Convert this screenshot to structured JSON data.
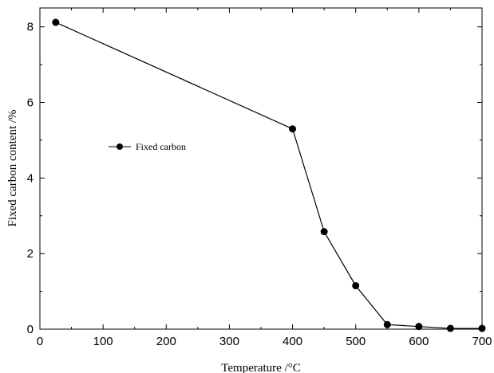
{
  "chart_data": {
    "type": "line",
    "xlabel": "Temperature /°C",
    "ylabel": "Fixed carbon content /%",
    "xlim": [
      0,
      700
    ],
    "ylim": [
      0,
      8.5
    ],
    "xticks": [
      0,
      100,
      200,
      300,
      400,
      500,
      600,
      700
    ],
    "yticks": [
      0,
      2,
      4,
      6,
      8
    ],
    "grid": false,
    "legend_placement": "center-left",
    "series": [
      {
        "name": "Fixed carbon",
        "color": "#000000",
        "marker": "filled-circle",
        "x": [
          25,
          400,
          450,
          500,
          550,
          600,
          650,
          700
        ],
        "y": [
          8.12,
          5.3,
          2.58,
          1.15,
          0.12,
          0.07,
          0.02,
          0.02
        ]
      }
    ]
  }
}
